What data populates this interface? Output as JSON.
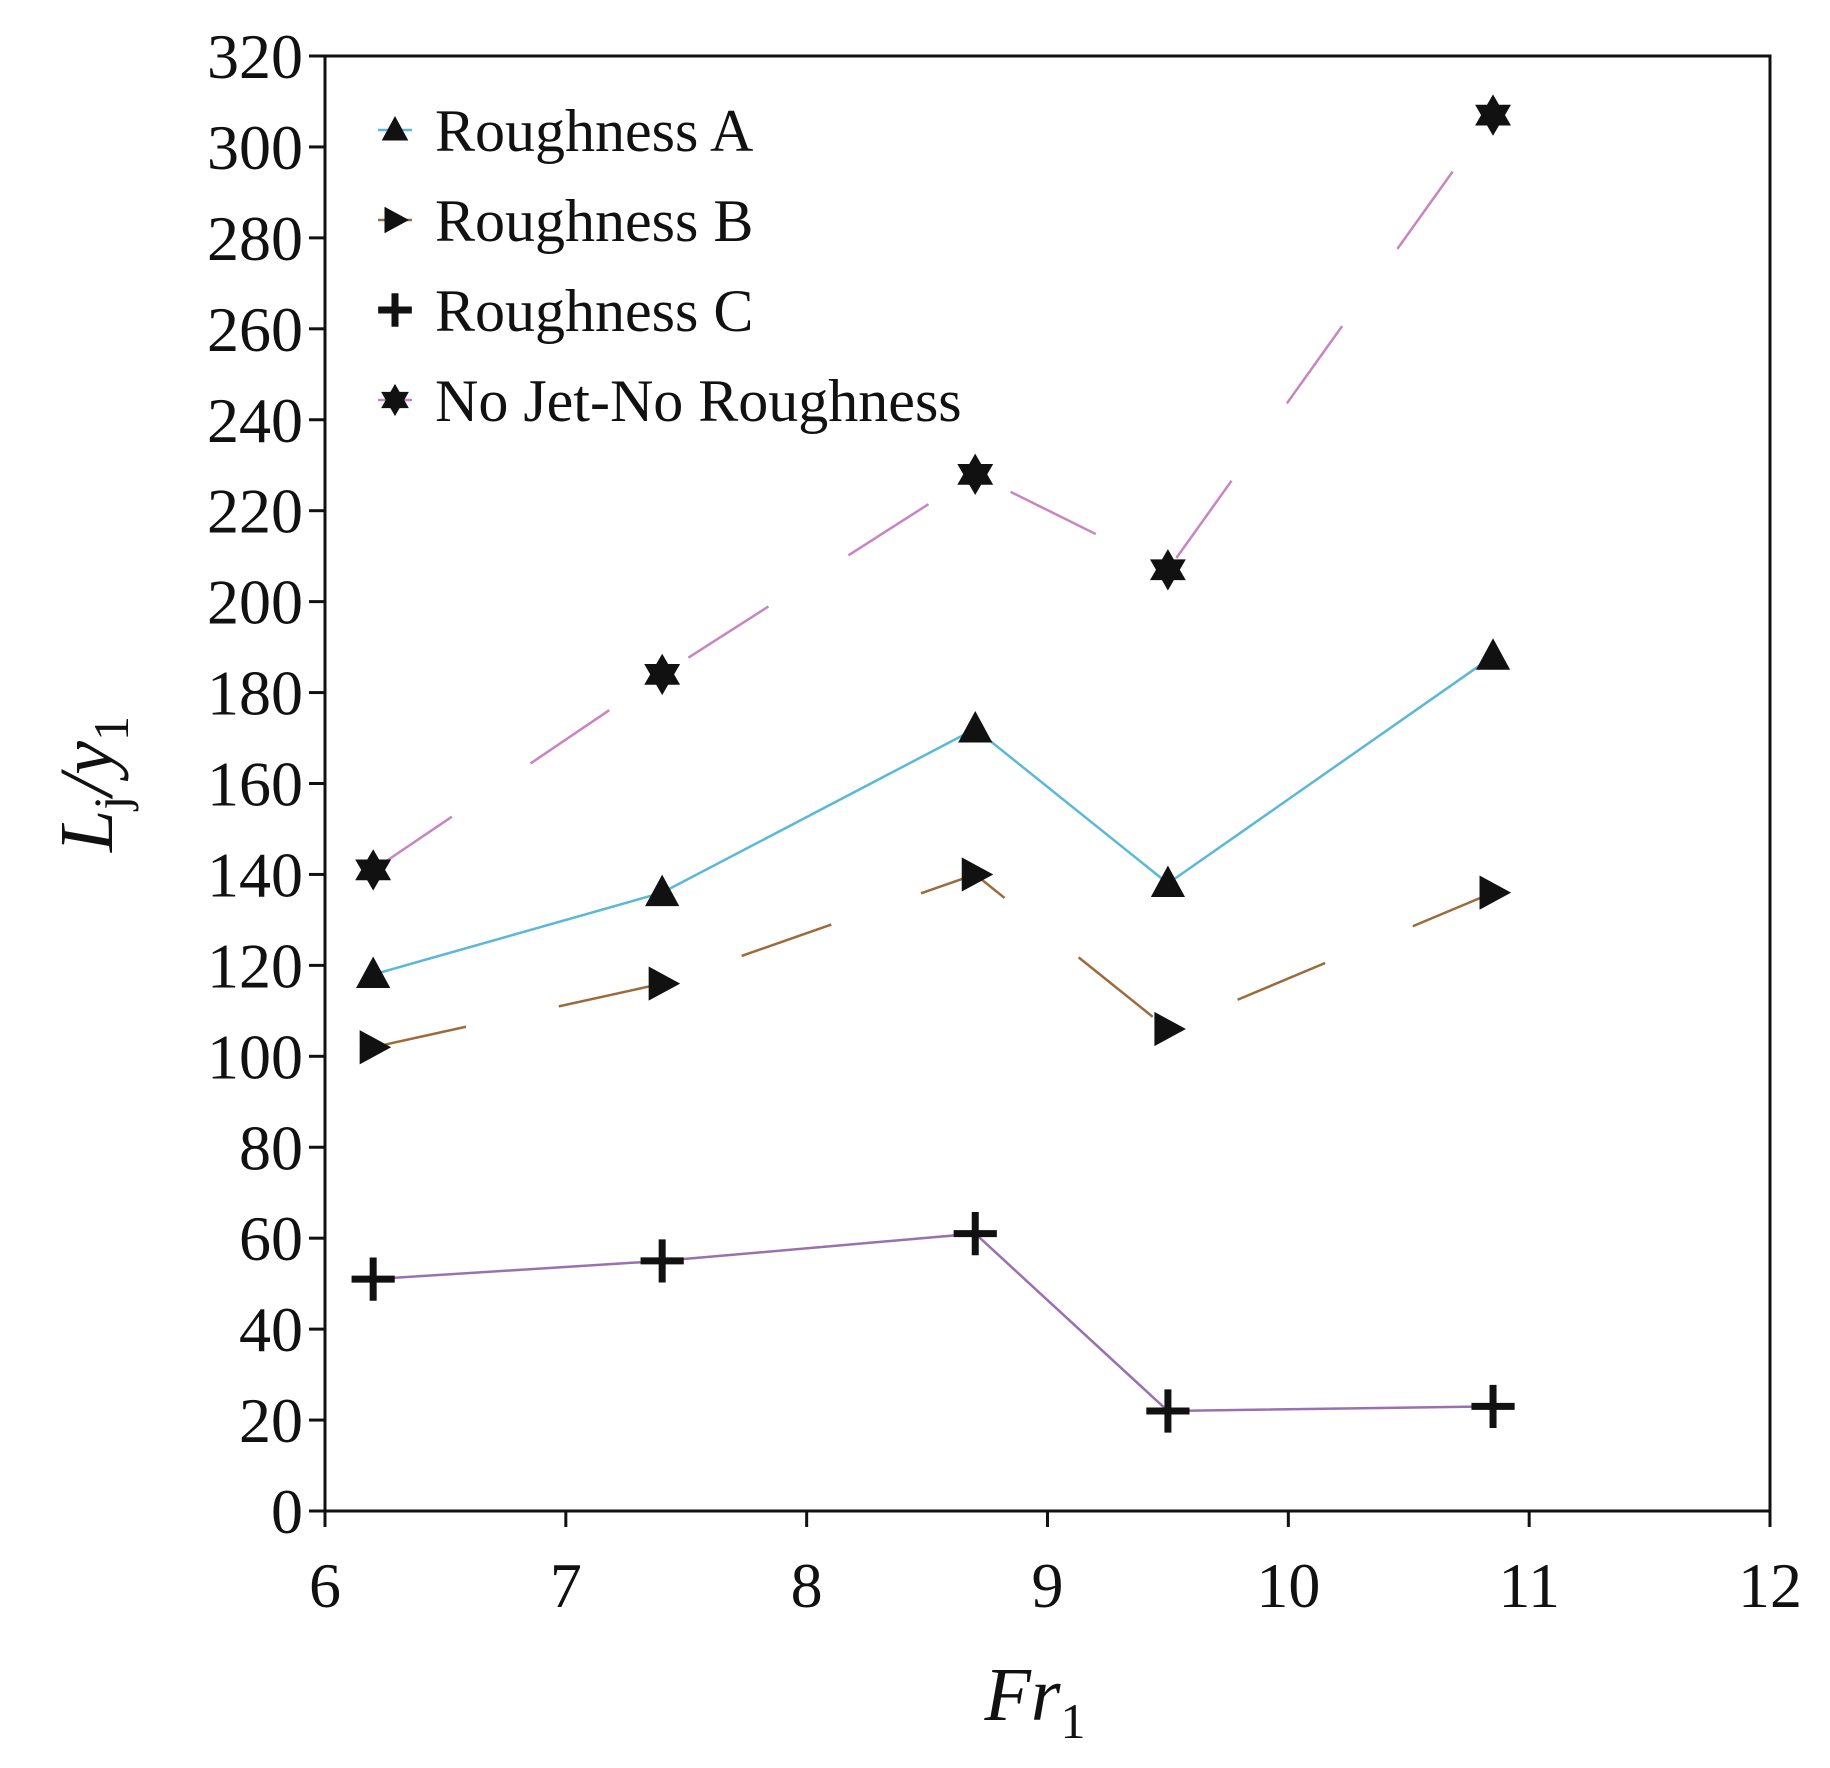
{
  "chart_data": {
    "type": "line",
    "title": "",
    "xlabel": {
      "main": "Fr",
      "subscript": "1"
    },
    "ylabel": {
      "main": "L",
      "main_subscript": "j",
      "slash": "/",
      "denom": "y",
      "denom_subscript": "1"
    },
    "xlim": [
      6,
      12
    ],
    "ylim": [
      0,
      320
    ],
    "xticks": [
      6,
      7,
      8,
      9,
      10,
      11,
      12
    ],
    "yticks": [
      0,
      20,
      40,
      60,
      80,
      100,
      120,
      140,
      160,
      180,
      200,
      220,
      240,
      260,
      280,
      300,
      320
    ],
    "grid": false,
    "legend_position": "top-left",
    "x": [
      6.2,
      7.4,
      8.7,
      9.5,
      10.85
    ],
    "series": [
      {
        "name": "Roughness A",
        "marker": "triangle-up",
        "line_color": "#5bb8d8",
        "line_style": "solid",
        "values": [
          118,
          136,
          172,
          138,
          188
        ]
      },
      {
        "name": "Roughness B",
        "marker": "triangle-right",
        "line_color": "#9c6b3c",
        "line_style": "dashed",
        "values": [
          102,
          116,
          140,
          106,
          136
        ]
      },
      {
        "name": "Roughness C",
        "marker": "plus",
        "line_color": "#9a70b0",
        "line_style": "solid",
        "values": [
          51,
          55,
          61,
          22,
          23
        ]
      },
      {
        "name": "No Jet-No Roughness",
        "marker": "star",
        "line_color": "#c786c2",
        "line_style": "dashed",
        "values": [
          141,
          184,
          228,
          207,
          307
        ]
      }
    ]
  }
}
